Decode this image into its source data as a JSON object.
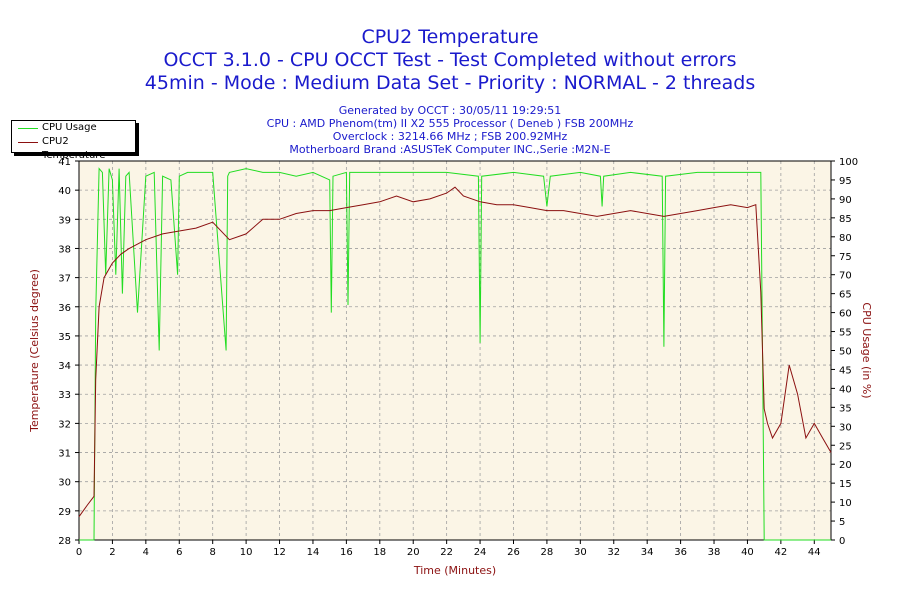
{
  "titles": {
    "line1": "CPU2 Temperature",
    "line2": "OCCT 3.1.0 - CPU OCCT Test - Test Completed without errors",
    "line3": "45min - Mode : Medium Data Set - Priority : NORMAL - 2 threads"
  },
  "info": {
    "generated": "Generated by OCCT : 30/05/11 19:29:51",
    "cpu": "CPU : AMD Phenom(tm) II X2 555 Processor ( Deneb ) FSB 200MHz",
    "overclock": "Overclock : 3214.66 MHz ; FSB 200.92MHz",
    "motherboard": "Motherboard Brand :ASUSTeK Computer INC.,Serie :M2N-E"
  },
  "colors": {
    "plot_bg": "#fbf5e6",
    "cpu_usage": "#22dd22",
    "cpu2_temp": "#8b1010",
    "left_axis": "#8b1010",
    "title": "#1a1acc"
  },
  "chart_data": {
    "type": "line",
    "xlabel": "Time (Minutes)",
    "ylabel_left": "Temperature (Celsius degree)",
    "ylabel_right": "CPU Usage (in %)",
    "xlim": [
      0,
      45
    ],
    "ylim_left": [
      28,
      41
    ],
    "ylim_right": [
      0,
      100
    ],
    "x_ticks": [
      0,
      2,
      4,
      6,
      8,
      10,
      12,
      14,
      16,
      18,
      20,
      22,
      24,
      26,
      28,
      30,
      32,
      34,
      36,
      38,
      40,
      42,
      44
    ],
    "y_ticks_left": [
      28,
      29,
      30,
      31,
      32,
      33,
      34,
      35,
      36,
      37,
      38,
      39,
      40,
      41
    ],
    "y_ticks_right": [
      0,
      5,
      10,
      15,
      20,
      25,
      30,
      35,
      40,
      45,
      50,
      55,
      60,
      65,
      70,
      75,
      80,
      85,
      90,
      95,
      100
    ],
    "grid": true,
    "legend_position": "top-left",
    "series": [
      {
        "name": "CPU Usage",
        "axis": "right",
        "x": [
          0,
          0.9,
          1.0,
          1.2,
          1.4,
          1.6,
          1.8,
          2.0,
          2.2,
          2.4,
          2.6,
          2.8,
          3.0,
          3.5,
          4.0,
          4.5,
          4.8,
          5.0,
          5.5,
          5.9,
          6.0,
          6.5,
          7.0,
          8.0,
          8.8,
          8.9,
          9.0,
          10,
          11,
          12,
          13,
          14,
          15,
          15.1,
          15.2,
          16,
          16.1,
          16.2,
          17,
          18,
          20,
          22,
          23.9,
          24,
          24.1,
          26,
          27.8,
          28,
          28.2,
          30,
          31.2,
          31.3,
          31.4,
          33,
          34.9,
          35,
          35.1,
          37,
          39,
          40,
          40.8,
          40.9,
          41.0,
          41.1,
          45
        ],
        "values": [
          0,
          0,
          60,
          98,
          97,
          70,
          98,
          95,
          70,
          98,
          65,
          96,
          97,
          60,
          96,
          97,
          50,
          96,
          95,
          70,
          96,
          97,
          97,
          97,
          50,
          96,
          97,
          98,
          97,
          97,
          96,
          97,
          95,
          60,
          96,
          97,
          62,
          97,
          97,
          97,
          97,
          97,
          96,
          52,
          96,
          97,
          96,
          88,
          96,
          97,
          96,
          88,
          96,
          97,
          96,
          51,
          96,
          97,
          97,
          97,
          97,
          50,
          0,
          0,
          0
        ]
      },
      {
        "name": "CPU2 Temperature",
        "axis": "left",
        "x": [
          0,
          0.5,
          0.9,
          1.0,
          1.2,
          1.5,
          2.0,
          2.5,
          3,
          4,
          5,
          6,
          7,
          8,
          9,
          10,
          11,
          12,
          13,
          14,
          15,
          16,
          17,
          18,
          19,
          20,
          21,
          22,
          22.5,
          23,
          24,
          25,
          26,
          27,
          28,
          29,
          30,
          31,
          32,
          33,
          34,
          35,
          36,
          37,
          38,
          39,
          40,
          40.5,
          40.8,
          41.0,
          41.2,
          41.5,
          42,
          42.5,
          43,
          43.5,
          44,
          44.5,
          45
        ],
        "values": [
          28.8,
          29.2,
          29.5,
          33.5,
          36.0,
          37.0,
          37.5,
          37.8,
          38.0,
          38.3,
          38.5,
          38.6,
          38.7,
          38.9,
          38.3,
          38.5,
          39.0,
          39.0,
          39.2,
          39.3,
          39.3,
          39.4,
          39.5,
          39.6,
          39.8,
          39.6,
          39.7,
          39.9,
          40.1,
          39.8,
          39.6,
          39.5,
          39.5,
          39.4,
          39.3,
          39.3,
          39.2,
          39.1,
          39.2,
          39.3,
          39.2,
          39.1,
          39.2,
          39.3,
          39.4,
          39.5,
          39.4,
          39.5,
          36.5,
          32.5,
          32.0,
          31.5,
          32.0,
          34.0,
          33.0,
          31.5,
          32.0,
          31.5,
          31.0
        ]
      }
    ]
  }
}
